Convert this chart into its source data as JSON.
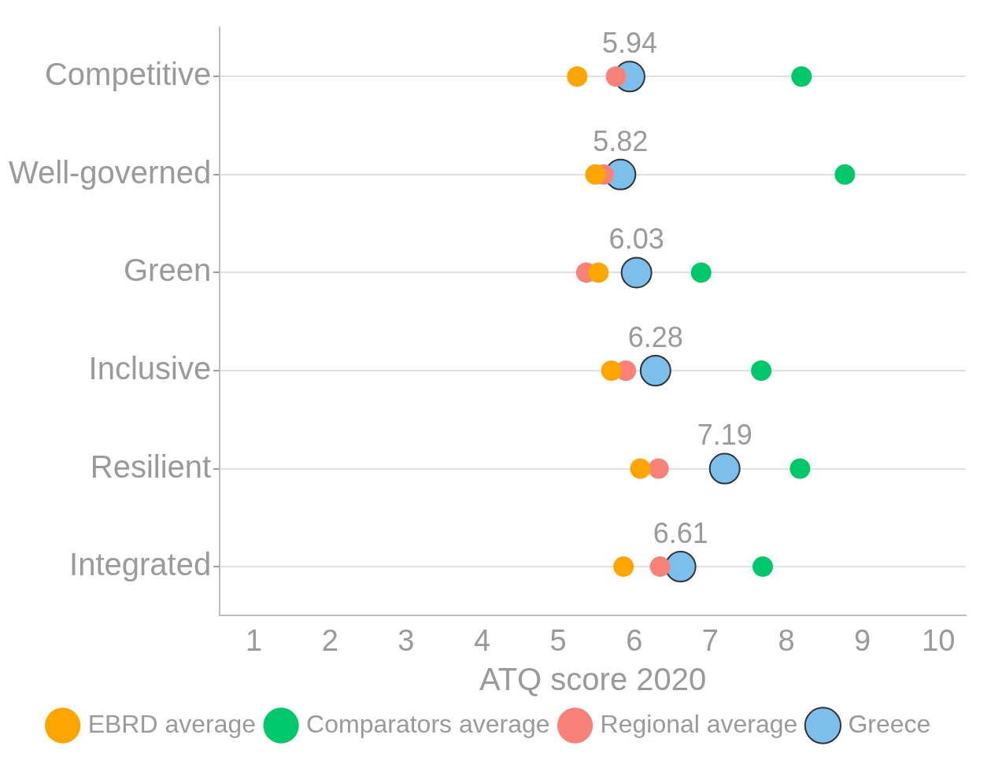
{
  "chart_data": {
    "type": "scatter",
    "xlabel": "ATQ score 2020",
    "categories": [
      "Competitive",
      "Well-governed",
      "Green",
      "Inclusive",
      "Resilient",
      "Integrated"
    ],
    "series": [
      {
        "name": "Greece",
        "color": "#7dbfec",
        "values": [
          5.94,
          5.82,
          6.03,
          6.28,
          7.19,
          6.61
        ],
        "value_labels": [
          "5.94",
          "5.82",
          "6.03",
          "6.28",
          "7.19",
          "6.61"
        ]
      },
      {
        "name": "EBRD average",
        "color": "#ffa500",
        "values": [
          5.25,
          5.49,
          5.53,
          5.7,
          6.08,
          5.86
        ]
      },
      {
        "name": "Comparators average",
        "color": "#00c86a",
        "values": [
          8.2,
          8.77,
          6.88,
          7.67,
          8.18,
          7.69
        ]
      },
      {
        "name": "Regional average",
        "color": "#f8827a",
        "values": [
          5.76,
          5.6,
          5.37,
          5.89,
          6.32,
          6.34
        ]
      }
    ],
    "orientation": "horizontal",
    "xlim": [
      0.55,
      10.36
    ],
    "xticks": [
      1,
      2,
      3,
      4,
      5,
      6,
      7,
      8,
      9,
      10
    ],
    "grid": "y",
    "legend": "bottom",
    "marker": "circle"
  }
}
